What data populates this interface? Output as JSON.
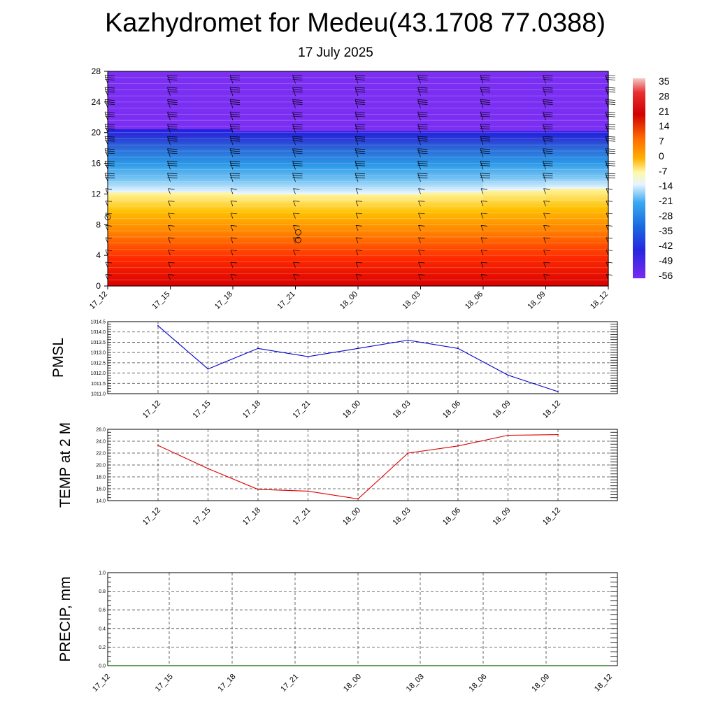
{
  "header": {
    "title": "Kazhydromet for Medeu(43.1708 77.0388)",
    "subtitle": "17 July 2025"
  },
  "chart_data": [
    {
      "type": "heatmap",
      "ylim": [
        0,
        28
      ],
      "yticks": [
        "0",
        "4",
        "8",
        "12",
        "16",
        "20",
        "24",
        "28"
      ],
      "xticks": [
        "17_12",
        "17_15",
        "17_18",
        "17_21",
        "18_00",
        "18_03",
        "18_06",
        "18_09",
        "18_12"
      ],
      "colorbar": {
        "labels": [
          "35",
          "28",
          "21",
          "14",
          "7",
          "0",
          "-7",
          "-14",
          "-21",
          "-28",
          "-35",
          "-42",
          "-49",
          "-56"
        ]
      },
      "freezing_level": [
        12.3,
        12.2,
        12.1,
        12.0,
        12.0,
        12.1,
        12.4,
        12.7,
        12.8
      ],
      "tropopause_level": [
        20.5,
        20.6,
        20.4,
        20.3,
        20.3,
        20.4,
        20.3,
        20.2,
        20.2
      ]
    },
    {
      "type": "line",
      "ylabel": "PMSL",
      "ylim": [
        1011.0,
        1014.5
      ],
      "yticks": [
        "1011.0",
        "1011.5",
        "1012.0",
        "1012.5",
        "1013.0",
        "1013.5",
        "1014.0",
        "1014.5"
      ],
      "categories": [
        "17_12",
        "17_15",
        "17_18",
        "17_21",
        "18_00",
        "18_03",
        "18_06",
        "18_09",
        "18_12"
      ],
      "values": [
        1014.3,
        1012.2,
        1013.2,
        1012.8,
        1013.2,
        1013.6,
        1013.2,
        1011.9,
        1011.1
      ],
      "color": "#0000cc"
    },
    {
      "type": "line",
      "ylabel": "TEMP at 2 M",
      "ylim": [
        14.0,
        26.0
      ],
      "yticks": [
        "14.0",
        "16.0",
        "18.0",
        "20.0",
        "22.0",
        "24.0",
        "26.0"
      ],
      "categories": [
        "17_12",
        "17_15",
        "17_18",
        "17_21",
        "18_00",
        "18_03",
        "18_06",
        "18_09",
        "18_12"
      ],
      "values": [
        23.3,
        19.4,
        15.9,
        15.6,
        14.3,
        22.0,
        23.2,
        25.0,
        25.1
      ],
      "color": "#dd0000"
    },
    {
      "type": "line",
      "ylabel": "PRECIP, mm",
      "ylim": [
        0.0,
        1.0
      ],
      "yticks": [
        "0.0",
        "0.2",
        "0.4",
        "0.6",
        "0.8",
        "1.0"
      ],
      "categories": [
        "17_12",
        "17_15",
        "17_18",
        "17_21",
        "18_00",
        "18_03",
        "18_06",
        "18_09",
        "18_12"
      ],
      "values": [
        0,
        0,
        0,
        0,
        0,
        0,
        0,
        0,
        0
      ],
      "color": "#006600"
    }
  ]
}
